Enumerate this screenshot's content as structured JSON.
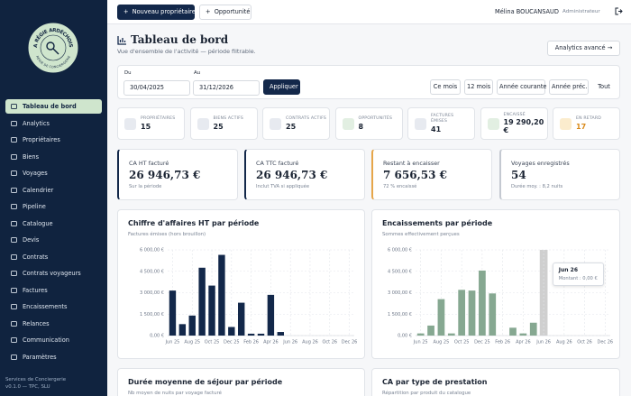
{
  "sidebar": {
    "logo": {
      "top": "LA RÉGIE ARDÉCHOISE",
      "bottom": "RÉGIE DE CONCIERGERIE"
    },
    "nav": [
      "Tableau de bord",
      "Analytics",
      "Propriétaires",
      "Biens",
      "Voyages",
      "Calendrier",
      "Pipeline",
      "Catalogue",
      "Devis",
      "Contrats",
      "Contrats voyageurs",
      "Factures",
      "Encaissements",
      "Relances",
      "Communication",
      "Paramètres"
    ],
    "active": 0,
    "footer": [
      "Services de Conciergerie",
      "v0.1.0 — TPC, SLU"
    ]
  },
  "topbar": {
    "actions": [
      "Nouveau propriétaire",
      "Opportunité"
    ],
    "user": "Mélina BOUCANSAUD",
    "role": "Administrateur"
  },
  "header": {
    "title": "Tableau de bord",
    "subtitle": "Vue d'ensemble de l'activité — période filtrable.",
    "action": "Analytics avancé →"
  },
  "filters": {
    "from_label": "Du",
    "from": "30/04/2025",
    "to_label": "Au",
    "to": "31/12/2026",
    "apply": "Appliquer",
    "presets": [
      "Ce mois",
      "12 mois",
      "Année courante",
      "Année préc.",
      "Tout"
    ]
  },
  "stats": [
    {
      "label": "PROPRIÉTAIRES",
      "value": 15
    },
    {
      "label": "BIENS ACTIFS",
      "value": 25
    },
    {
      "label": "CONTRATS ACTIFS",
      "value": 25
    },
    {
      "label": "OPPORTUNITÉS",
      "value": 8
    },
    {
      "label": "FACTURES ÉMISES",
      "value": 41
    },
    {
      "label": "ENCAISSÉ",
      "value": "19 290,20 €"
    },
    {
      "label": "EN RETARD",
      "value": 17
    }
  ],
  "kpis": [
    {
      "label": "CA HT facturé",
      "value": "26 946,73 €",
      "note": "Sur la période"
    },
    {
      "label": "CA TTC facturé",
      "value": "26 946,73 €",
      "note": "Inclut TVA si appliquée"
    },
    {
      "label": "Restant à encaisser",
      "value": "7 656,53 €",
      "note": "72 % encaissé"
    },
    {
      "label": "Voyages enregistrés",
      "value": 54,
      "note": "Durée moy. : 8,2 nuits"
    }
  ],
  "charts": [
    {
      "type": "bar",
      "title": "Chiffre d'affaires HT par période",
      "subtitle": "Factures émises (hors brouillon)",
      "categories": [
        "Jun 25",
        null,
        "Aug 25",
        null,
        "Oct 25",
        null,
        "Dec 25",
        null,
        "Feb 26",
        null,
        "Apr 26",
        null,
        "Jun 26",
        null,
        "Aug 26",
        null,
        "Oct 26",
        null,
        "Dec 26"
      ],
      "values": [
        3150,
        800,
        1400,
        4750,
        3500,
        5650,
        600,
        2300,
        130,
        130,
        2850,
        250,
        0,
        0,
        0,
        0,
        0,
        0,
        0
      ],
      "color": "#13284a",
      "ylim": [
        0,
        6000
      ],
      "yticks": [
        {
          "value": 0,
          "label": "0,00 €"
        },
        {
          "value": 1500,
          "label": "1 500,00 €"
        },
        {
          "value": 3000,
          "label": "3 000,00 €"
        },
        {
          "value": 4500,
          "label": "4 500,00 €"
        },
        {
          "value": 6000,
          "label": "6 000,00 €"
        }
      ],
      "grid": true
    },
    {
      "type": "bar",
      "title": "Encaissements par période",
      "subtitle": "Sommes effectivement perçues",
      "categories": [
        "Jun 25",
        null,
        "Aug 25",
        null,
        "Oct 25",
        null,
        "Dec 25",
        null,
        "Feb 26",
        null,
        "Apr 26",
        null,
        "Jun 26",
        null,
        "Aug 26",
        null,
        "Oct 26",
        null,
        "Dec 26"
      ],
      "values": [
        150,
        700,
        2550,
        150,
        3200,
        3150,
        4550,
        2950,
        0,
        550,
        150,
        900,
        0,
        0,
        0,
        0,
        0,
        0,
        0
      ],
      "color": "#86a891",
      "ylim": [
        0,
        6000
      ],
      "yticks": [
        {
          "value": 0,
          "label": "0,00 €"
        },
        {
          "value": 1500,
          "label": "1 500,00 €"
        },
        {
          "value": 3000,
          "label": "3 000,00 €"
        },
        {
          "value": 4500,
          "label": "4 500,00 €"
        },
        {
          "value": 6000,
          "label": "6 000,00 €"
        }
      ],
      "grid": true,
      "hover": 12,
      "tooltip": {
        "title": "Jun 26",
        "text": "Montant : 0,00 €"
      }
    }
  ],
  "more_cards": [
    {
      "title": "Durée moyenne de séjour par période",
      "subtitle": "Nb moyen de nuits par voyage facturé"
    },
    {
      "title": "CA par type de prestation",
      "subtitle": "Répartition par produit du catalogue"
    }
  ]
}
